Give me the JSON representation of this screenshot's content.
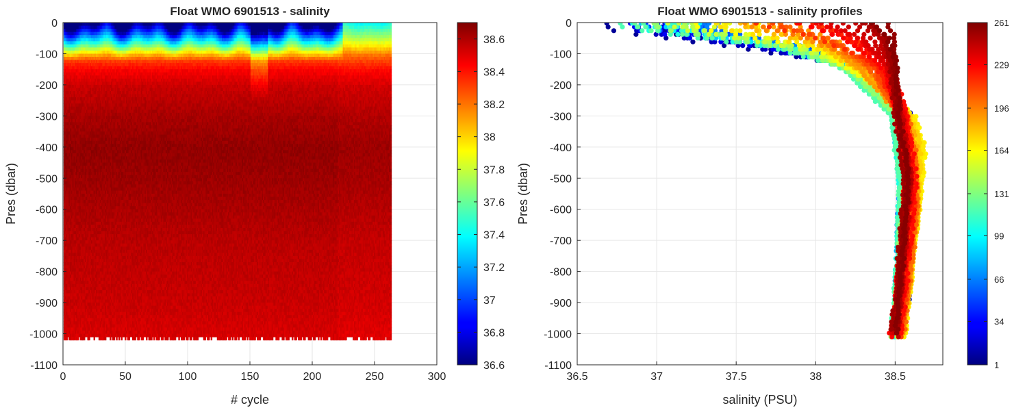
{
  "chart_data": [
    {
      "type": "heatmap",
      "title": "Float WMO 6901513 - salinity",
      "xlabel": "# cycle",
      "ylabel": "Pres (dbar)",
      "xlim": [
        0,
        300
      ],
      "ylim": [
        -1100,
        0
      ],
      "xticks": [
        "0",
        "50",
        "100",
        "150",
        "200",
        "250",
        "300"
      ],
      "yticks": [
        "0",
        "-100",
        "-200",
        "-300",
        "-400",
        "-500",
        "-600",
        "-700",
        "-800",
        "-900",
        "-1000",
        "-1100"
      ],
      "grid": true,
      "colormap": "jet",
      "colorbar": {
        "range": [
          36.6,
          38.7
        ],
        "ticks": [
          "38.6",
          "38.4",
          "38.2",
          "38",
          "37.8",
          "37.6",
          "37.4",
          "37.2",
          "37",
          "36.8",
          "36.6"
        ]
      },
      "cycles": [
        1,
        263
      ],
      "profile_bottom_dbar": -1000,
      "depth_profile": {
        "pressure": [
          0,
          -50,
          -100,
          -150,
          -200,
          -300,
          -400,
          -500,
          -700,
          -900,
          -1000
        ],
        "salinity": [
          37.6,
          37.9,
          38.25,
          38.45,
          38.55,
          38.62,
          38.66,
          38.64,
          38.58,
          38.55,
          38.52
        ]
      }
    },
    {
      "type": "scatter",
      "title": "Float WMO 6901513 - salinity profiles",
      "xlabel": "salinity (PSU)",
      "ylabel": "Pres (dbar)",
      "xlim": [
        36.5,
        38.8
      ],
      "ylim": [
        -1100,
        0
      ],
      "xticks": [
        "36.5",
        "37",
        "37.5",
        "38",
        "38.5"
      ],
      "yticks": [
        "0",
        "-100",
        "-200",
        "-300",
        "-400",
        "-500",
        "-600",
        "-700",
        "-800",
        "-900",
        "-1000",
        "-1100"
      ],
      "grid": true,
      "color_by": "cycle number",
      "colorbar": {
        "range": [
          1,
          261
        ],
        "ticks": [
          "261",
          "229",
          "196",
          "164",
          "131",
          "99",
          "66",
          "34",
          "1"
        ]
      },
      "series": [
        {
          "cycle": 10,
          "pressure": [
            -30,
            -80,
            -150,
            -300,
            -500,
            -700,
            -900,
            -1000
          ],
          "salinity": [
            36.9,
            37.6,
            38.3,
            38.58,
            38.57,
            38.56,
            38.55,
            38.52
          ]
        },
        {
          "cycle": 60,
          "pressure": [
            -20,
            -80,
            -150,
            -300,
            -500,
            -700,
            -900,
            -1000
          ],
          "salinity": [
            37.2,
            37.9,
            38.3,
            38.52,
            38.55,
            38.54,
            38.53,
            38.51
          ]
        },
        {
          "cycle": 120,
          "pressure": [
            -20,
            -80,
            -150,
            -300,
            -500,
            -700,
            -900,
            -1000
          ],
          "salinity": [
            37.0,
            37.8,
            38.2,
            38.5,
            38.55,
            38.54,
            38.52,
            38.5
          ]
        },
        {
          "cycle": 160,
          "pressure": [
            -20,
            -80,
            -200,
            -300,
            -400,
            -600,
            -800,
            -1000
          ],
          "salinity": [
            37.4,
            38.0,
            38.4,
            38.6,
            38.67,
            38.62,
            38.57,
            38.53
          ]
        },
        {
          "cycle": 190,
          "pressure": [
            -10,
            -60,
            -150,
            -300,
            -400,
            -600,
            -800,
            -1000
          ],
          "salinity": [
            37.7,
            38.05,
            38.3,
            38.55,
            38.6,
            38.62,
            38.58,
            38.53
          ]
        },
        {
          "cycle": 225,
          "pressure": [
            0,
            -50,
            -150,
            -300,
            -500,
            -700,
            -900,
            -1000
          ],
          "salinity": [
            37.9,
            38.2,
            38.45,
            38.55,
            38.6,
            38.57,
            38.53,
            38.5
          ]
        },
        {
          "cycle": 255,
          "pressure": [
            0,
            -50,
            -150,
            -300,
            -500,
            -700,
            -900,
            -1000
          ],
          "salinity": [
            38.4,
            38.48,
            38.5,
            38.52,
            38.58,
            38.55,
            38.52,
            38.5
          ]
        }
      ]
    }
  ]
}
